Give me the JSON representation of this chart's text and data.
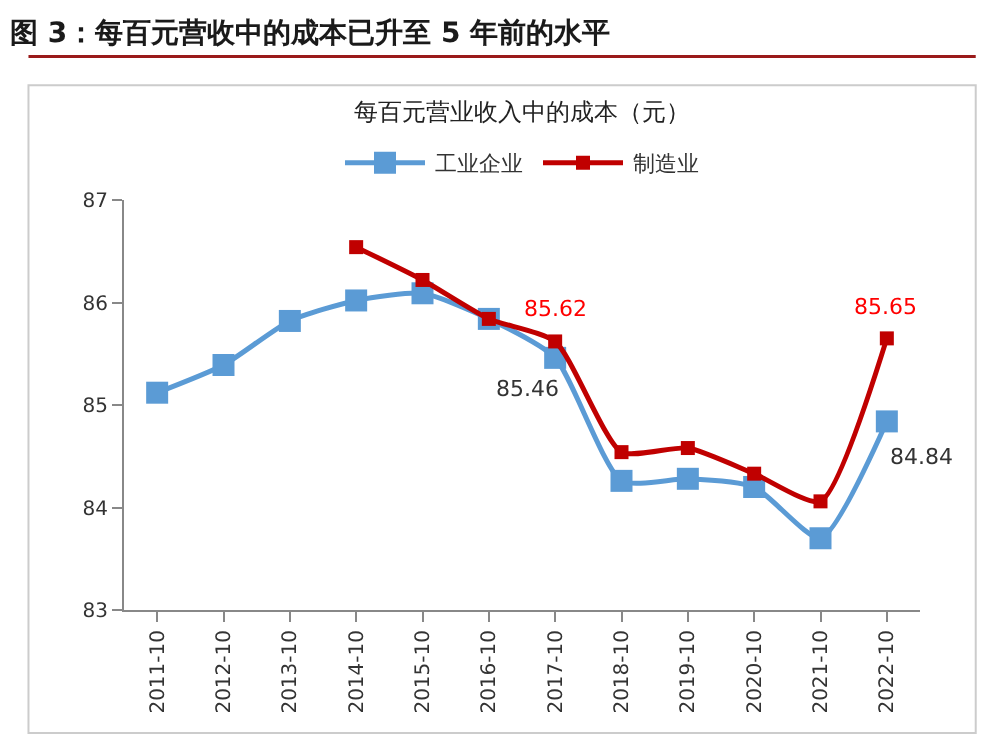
{
  "chart_data": {
    "type": "line",
    "title": "图 3：每百元营收中的成本已升至 5 年前的水平",
    "subtitle": "每百元营业收入中的成本（元）",
    "categories": [
      "2011-10",
      "2012-10",
      "2013-10",
      "2014-10",
      "2015-10",
      "2016-10",
      "2017-10",
      "2018-10",
      "2019-10",
      "2020-10",
      "2021-10",
      "2022-10"
    ],
    "series": [
      {
        "name": "工业企业",
        "color": "#5b9bd5",
        "values": [
          85.12,
          85.39,
          85.82,
          86.02,
          86.09,
          85.84,
          85.46,
          84.26,
          84.28,
          84.2,
          83.7,
          84.84
        ],
        "value_labels": [
          null,
          null,
          null,
          null,
          null,
          null,
          "85.46",
          null,
          null,
          null,
          null,
          "84.84"
        ]
      },
      {
        "name": "制造业",
        "color": "#c00000",
        "values": [
          null,
          null,
          null,
          86.54,
          86.22,
          85.84,
          85.62,
          84.54,
          84.58,
          84.33,
          84.06,
          85.65
        ],
        "value_labels": [
          null,
          null,
          null,
          null,
          null,
          null,
          "85.62",
          null,
          null,
          null,
          null,
          "85.65"
        ]
      }
    ],
    "ylim": [
      83,
      87
    ],
    "yticks": [
      83,
      84,
      85,
      86,
      87
    ],
    "legend": "top",
    "marker": "square",
    "line_style": "solid"
  }
}
